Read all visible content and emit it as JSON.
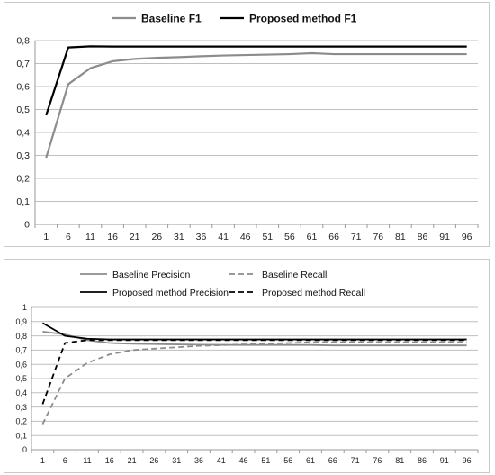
{
  "chart_data": [
    {
      "type": "line",
      "title": "",
      "xlabel": "",
      "ylabel": "",
      "x": [
        1,
        6,
        11,
        16,
        21,
        26,
        31,
        36,
        41,
        46,
        51,
        56,
        61,
        66,
        71,
        76,
        81,
        86,
        91,
        96
      ],
      "y_tick_labels": [
        "0",
        "0,1",
        "0,2",
        "0,3",
        "0,4",
        "0,5",
        "0,6",
        "0,7",
        "0,8"
      ],
      "ylim": [
        0,
        0.8
      ],
      "grid": true,
      "legend_position": "top",
      "series": [
        {
          "name": "Baseline F1",
          "color": "#8c8c8c",
          "style": "solid",
          "points": [
            [
              1,
              0.29
            ],
            [
              6,
              0.61
            ],
            [
              11,
              0.68
            ],
            [
              16,
              0.71
            ],
            [
              21,
              0.72
            ],
            [
              26,
              0.725
            ],
            [
              31,
              0.728
            ],
            [
              36,
              0.732
            ],
            [
              41,
              0.735
            ],
            [
              46,
              0.737
            ],
            [
              51,
              0.739
            ],
            [
              56,
              0.741
            ],
            [
              61,
              0.745
            ],
            [
              66,
              0.741
            ],
            [
              71,
              0.741
            ],
            [
              76,
              0.741
            ],
            [
              81,
              0.741
            ],
            [
              86,
              0.741
            ],
            [
              91,
              0.741
            ],
            [
              96,
              0.741
            ]
          ]
        },
        {
          "name": "Proposed method F1",
          "color": "#000000",
          "style": "solid",
          "points": [
            [
              1,
              0.475
            ],
            [
              6,
              0.77
            ],
            [
              11,
              0.775
            ],
            [
              16,
              0.774
            ],
            [
              21,
              0.774
            ],
            [
              26,
              0.774
            ],
            [
              31,
              0.774
            ],
            [
              36,
              0.774
            ],
            [
              41,
              0.774
            ],
            [
              46,
              0.774
            ],
            [
              51,
              0.774
            ],
            [
              56,
              0.774
            ],
            [
              61,
              0.774
            ],
            [
              66,
              0.774
            ],
            [
              71,
              0.774
            ],
            [
              76,
              0.774
            ],
            [
              81,
              0.774
            ],
            [
              86,
              0.774
            ],
            [
              91,
              0.774
            ],
            [
              96,
              0.774
            ]
          ]
        }
      ]
    },
    {
      "type": "line",
      "title": "",
      "xlabel": "",
      "ylabel": "",
      "x": [
        1,
        6,
        11,
        16,
        21,
        26,
        31,
        36,
        41,
        46,
        51,
        56,
        61,
        66,
        71,
        76,
        81,
        86,
        91,
        96
      ],
      "y_tick_labels": [
        "0",
        "0,1",
        "0,2",
        "0,3",
        "0,4",
        "0,5",
        "0,6",
        "0,7",
        "0,8",
        "0,9",
        "1"
      ],
      "ylim": [
        0,
        1
      ],
      "grid": true,
      "legend_position": "top",
      "series": [
        {
          "name": "Baseline Precision",
          "color": "#8c8c8c",
          "style": "solid",
          "points": [
            [
              1,
              0.83
            ],
            [
              6,
              0.81
            ],
            [
              11,
              0.77
            ],
            [
              16,
              0.75
            ],
            [
              21,
              0.745
            ],
            [
              26,
              0.742
            ],
            [
              31,
              0.74
            ],
            [
              36,
              0.738
            ],
            [
              41,
              0.737
            ],
            [
              46,
              0.736
            ],
            [
              51,
              0.736
            ],
            [
              56,
              0.736
            ],
            [
              61,
              0.736
            ],
            [
              66,
              0.733
            ],
            [
              71,
              0.733
            ],
            [
              76,
              0.733
            ],
            [
              81,
              0.733
            ],
            [
              86,
              0.733
            ],
            [
              91,
              0.733
            ],
            [
              96,
              0.733
            ]
          ]
        },
        {
          "name": "Baseline Recall",
          "color": "#8c8c8c",
          "style": "dashed",
          "points": [
            [
              1,
              0.18
            ],
            [
              6,
              0.5
            ],
            [
              11,
              0.61
            ],
            [
              16,
              0.67
            ],
            [
              21,
              0.7
            ],
            [
              26,
              0.71
            ],
            [
              31,
              0.72
            ],
            [
              36,
              0.73
            ],
            [
              41,
              0.735
            ],
            [
              46,
              0.74
            ],
            [
              51,
              0.745
            ],
            [
              56,
              0.75
            ],
            [
              61,
              0.755
            ],
            [
              66,
              0.755
            ],
            [
              71,
              0.755
            ],
            [
              76,
              0.755
            ],
            [
              81,
              0.755
            ],
            [
              86,
              0.755
            ],
            [
              91,
              0.755
            ],
            [
              96,
              0.755
            ]
          ]
        },
        {
          "name": "Proposed method Precision",
          "color": "#000000",
          "style": "solid",
          "points": [
            [
              1,
              0.89
            ],
            [
              6,
              0.8
            ],
            [
              11,
              0.78
            ],
            [
              16,
              0.775
            ],
            [
              21,
              0.775
            ],
            [
              26,
              0.775
            ],
            [
              31,
              0.775
            ],
            [
              36,
              0.775
            ],
            [
              41,
              0.775
            ],
            [
              46,
              0.775
            ],
            [
              51,
              0.775
            ],
            [
              56,
              0.775
            ],
            [
              61,
              0.775
            ],
            [
              66,
              0.775
            ],
            [
              71,
              0.775
            ],
            [
              76,
              0.775
            ],
            [
              81,
              0.775
            ],
            [
              86,
              0.775
            ],
            [
              91,
              0.775
            ],
            [
              96,
              0.775
            ]
          ]
        },
        {
          "name": "Proposed method Recall",
          "color": "#000000",
          "style": "dashed",
          "points": [
            [
              1,
              0.32
            ],
            [
              6,
              0.75
            ],
            [
              11,
              0.77
            ],
            [
              16,
              0.77
            ],
            [
              21,
              0.77
            ],
            [
              26,
              0.77
            ],
            [
              31,
              0.77
            ],
            [
              36,
              0.77
            ],
            [
              41,
              0.77
            ],
            [
              46,
              0.77
            ],
            [
              51,
              0.77
            ],
            [
              56,
              0.77
            ],
            [
              61,
              0.77
            ],
            [
              66,
              0.77
            ],
            [
              71,
              0.77
            ],
            [
              76,
              0.77
            ],
            [
              81,
              0.77
            ],
            [
              86,
              0.77
            ],
            [
              91,
              0.77
            ],
            [
              96,
              0.77
            ]
          ]
        }
      ]
    }
  ]
}
